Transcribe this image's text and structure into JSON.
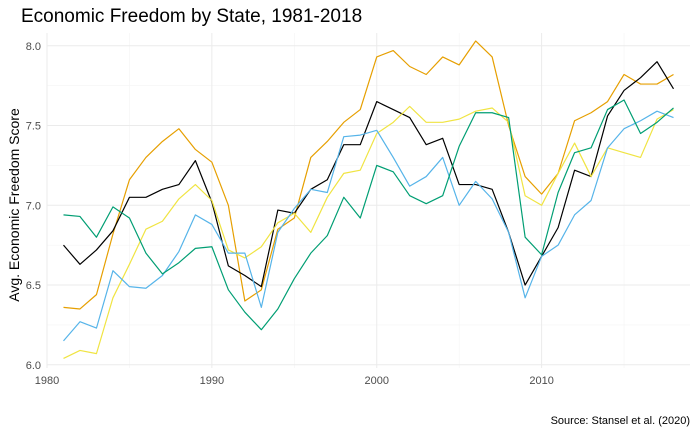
{
  "chart_data": {
    "type": "line",
    "title": "Economic Freedom by State, 1981-2018",
    "xlabel": "",
    "ylabel": "Avg. Economic Freedom Score",
    "caption": "Source: Stansel et al. (2020)",
    "xlim": [
      1980,
      2019
    ],
    "ylim": [
      5.98,
      8.08
    ],
    "x_ticks": [
      1980,
      1990,
      2000,
      2010
    ],
    "y_ticks": [
      6.0,
      6.5,
      7.0,
      7.5,
      8.0
    ],
    "y_tick_labels": [
      "6.0",
      "6.5",
      "7.0",
      "7.5",
      "8.0"
    ],
    "grid": true,
    "legend": "none",
    "x": [
      1981,
      1982,
      1983,
      1984,
      1985,
      1986,
      1987,
      1988,
      1989,
      1990,
      1991,
      1992,
      1993,
      1994,
      1995,
      1996,
      1997,
      1998,
      1999,
      2000,
      2001,
      2002,
      2003,
      2004,
      2005,
      2006,
      2007,
      2008,
      2009,
      2010,
      2011,
      2012,
      2013,
      2014,
      2015,
      2016,
      2017,
      2018
    ],
    "series": [
      {
        "color": "#E69F00",
        "values": [
          6.36,
          6.35,
          6.44,
          6.82,
          7.16,
          7.3,
          7.4,
          7.48,
          7.35,
          7.27,
          7.0,
          6.4,
          6.47,
          6.85,
          6.92,
          7.3,
          7.4,
          7.52,
          7.6,
          7.93,
          7.97,
          7.87,
          7.82,
          7.93,
          7.88,
          8.03,
          7.93,
          7.5,
          7.18,
          7.07,
          7.2,
          7.53,
          7.58,
          7.65,
          7.82,
          7.76,
          7.76,
          7.82
        ]
      },
      {
        "color": "#000000",
        "values": [
          6.75,
          6.63,
          6.72,
          6.84,
          7.05,
          7.05,
          7.1,
          7.13,
          7.28,
          7.02,
          6.62,
          6.56,
          6.49,
          6.97,
          6.95,
          7.1,
          7.16,
          7.38,
          7.38,
          7.65,
          7.6,
          7.55,
          7.38,
          7.42,
          7.13,
          7.13,
          7.1,
          6.83,
          6.5,
          6.68,
          6.86,
          7.22,
          7.18,
          7.56,
          7.72,
          7.8,
          7.9,
          7.73
        ]
      },
      {
        "color": "#F0E442",
        "values": [
          6.04,
          6.09,
          6.07,
          6.42,
          6.63,
          6.85,
          6.9,
          7.04,
          7.13,
          7.03,
          6.72,
          6.67,
          6.74,
          6.89,
          6.95,
          6.83,
          7.05,
          7.2,
          7.22,
          7.45,
          7.52,
          7.62,
          7.52,
          7.52,
          7.54,
          7.59,
          7.61,
          7.52,
          7.06,
          7.0,
          7.2,
          7.39,
          7.18,
          7.36,
          7.33,
          7.3,
          7.54,
          7.6
        ]
      },
      {
        "color": "#56B4E9",
        "values": [
          6.15,
          6.27,
          6.23,
          6.59,
          6.49,
          6.48,
          6.56,
          6.71,
          6.94,
          6.88,
          6.7,
          6.7,
          6.36,
          6.83,
          6.98,
          7.1,
          7.08,
          7.43,
          7.44,
          7.47,
          7.3,
          7.12,
          7.18,
          7.3,
          7.0,
          7.15,
          7.04,
          6.83,
          6.42,
          6.68,
          6.75,
          6.94,
          7.03,
          7.36,
          7.48,
          7.53,
          7.59,
          7.55
        ]
      },
      {
        "color": "#009E73",
        "values": [
          6.94,
          6.93,
          6.8,
          6.99,
          6.92,
          6.7,
          6.57,
          6.64,
          6.73,
          6.74,
          6.47,
          6.33,
          6.22,
          6.35,
          6.54,
          6.7,
          6.81,
          7.05,
          6.92,
          7.25,
          7.21,
          7.06,
          7.01,
          7.06,
          7.37,
          7.58,
          7.58,
          7.55,
          6.8,
          6.69,
          7.08,
          7.33,
          7.36,
          7.6,
          7.66,
          7.45,
          7.52,
          7.61
        ]
      }
    ]
  }
}
